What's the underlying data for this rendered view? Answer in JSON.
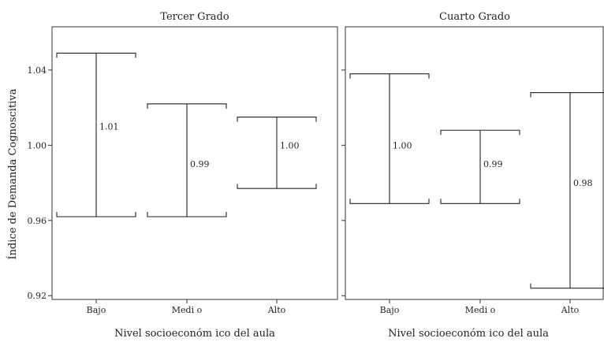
{
  "chart_data": {
    "type": "errorbar",
    "y_axis_label": "Índice de Demanda Cognoscitiva",
    "ylim": [
      0.918,
      1.063
    ],
    "y_ticks": [
      "0.92",
      "0.96",
      "1.00",
      "1.04"
    ],
    "y_tick_values": [
      0.92,
      0.96,
      1.0,
      1.04
    ],
    "categories": [
      "Bajo",
      "Medi o",
      "Alto"
    ],
    "panels": [
      {
        "title": "Tercer Grado",
        "xlabel": "Nivel socioeconóm ico del aula",
        "show_y_labels": true,
        "series": [
          {
            "category": "Bajo",
            "mean_label": "1.01",
            "mean": 1.01,
            "lower": 0.962,
            "upper": 1.049
          },
          {
            "category": "Medi o",
            "mean_label": "0.99",
            "mean": 0.99,
            "lower": 0.962,
            "upper": 1.022
          },
          {
            "category": "Alto",
            "mean_label": "1.00",
            "mean": 1.0,
            "lower": 0.977,
            "upper": 1.015
          }
        ]
      },
      {
        "title": "Cuarto Grado",
        "xlabel": "Nivel socioeconóm ico del aula",
        "show_y_labels": false,
        "series": [
          {
            "category": "Bajo",
            "mean_label": "1.00",
            "mean": 1.0,
            "lower": 0.969,
            "upper": 1.038
          },
          {
            "category": "Medi o",
            "mean_label": "0.99",
            "mean": 0.99,
            "lower": 0.969,
            "upper": 1.008
          },
          {
            "category": "Alto",
            "mean_label": "0.98",
            "mean": 0.98,
            "lower": 0.924,
            "upper": 1.028
          }
        ]
      }
    ]
  }
}
